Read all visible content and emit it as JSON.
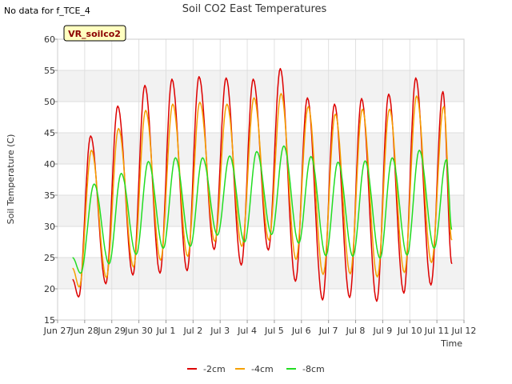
{
  "header": {
    "no_data_text": "No data for f_TCE_4"
  },
  "station_label": "VR_soilco2",
  "chart_data": {
    "type": "line",
    "title": "Soil CO2 East Temperatures",
    "xlabel": "Time",
    "ylabel": "Soil Temperature (C)",
    "x_ticks": [
      {
        "day": 0,
        "label": "Jun 27"
      },
      {
        "day": 1,
        "label": "Jun 28"
      },
      {
        "day": 2,
        "label": "Jun 29"
      },
      {
        "day": 3,
        "label": "Jun 30"
      },
      {
        "day": 4,
        "label": "Jul 1"
      },
      {
        "day": 5,
        "label": "Jul 2"
      },
      {
        "day": 6,
        "label": "Jul 3"
      },
      {
        "day": 7,
        "label": "Jul 4"
      },
      {
        "day": 8,
        "label": "Jul 5"
      },
      {
        "day": 9,
        "label": "Jul 6"
      },
      {
        "day": 10,
        "label": "Jul 7"
      },
      {
        "day": 11,
        "label": "Jul 8"
      },
      {
        "day": 12,
        "label": "Jul 9"
      },
      {
        "day": 13,
        "label": "Jul 10"
      },
      {
        "day": 14,
        "label": "Jul 11"
      },
      {
        "day": 15,
        "label": "Jul 12"
      }
    ],
    "xlim": [
      0,
      15
    ],
    "ylim": [
      15,
      60
    ],
    "y_ticks": [
      15,
      20,
      25,
      30,
      35,
      40,
      45,
      50,
      55,
      60
    ],
    "grid": "alternating horizontal bands",
    "legend_position": "bottom-center",
    "series": [
      {
        "name": "-2cm",
        "color": "#dd0000",
        "points": [
          [
            0.55,
            21.5
          ],
          [
            0.78,
            18.7
          ],
          [
            1.22,
            44.5
          ],
          [
            1.78,
            20.8
          ],
          [
            2.22,
            49.3
          ],
          [
            2.78,
            22.2
          ],
          [
            3.22,
            52.6
          ],
          [
            3.78,
            22.5
          ],
          [
            4.22,
            53.6
          ],
          [
            4.78,
            22.9
          ],
          [
            5.22,
            54.0
          ],
          [
            5.78,
            26.3
          ],
          [
            6.22,
            53.8
          ],
          [
            6.78,
            23.8
          ],
          [
            7.22,
            53.6
          ],
          [
            7.78,
            26.2
          ],
          [
            8.22,
            55.3
          ],
          [
            8.78,
            21.2
          ],
          [
            9.22,
            50.6
          ],
          [
            9.78,
            18.2
          ],
          [
            10.22,
            49.6
          ],
          [
            10.78,
            18.6
          ],
          [
            11.22,
            50.5
          ],
          [
            11.78,
            18.0
          ],
          [
            12.22,
            51.2
          ],
          [
            12.78,
            19.3
          ],
          [
            13.22,
            53.8
          ],
          [
            13.78,
            20.6
          ],
          [
            14.22,
            51.6
          ],
          [
            14.55,
            24.0
          ]
        ]
      },
      {
        "name": "-4cm",
        "color": "#f5a000",
        "points": [
          [
            0.55,
            23.3
          ],
          [
            0.8,
            20.3
          ],
          [
            1.25,
            42.2
          ],
          [
            1.8,
            21.8
          ],
          [
            2.25,
            45.7
          ],
          [
            2.8,
            23.5
          ],
          [
            3.25,
            48.6
          ],
          [
            3.8,
            24.6
          ],
          [
            4.25,
            49.6
          ],
          [
            4.8,
            25.2
          ],
          [
            5.25,
            49.9
          ],
          [
            5.8,
            27.6
          ],
          [
            6.25,
            49.6
          ],
          [
            6.8,
            26.8
          ],
          [
            7.25,
            50.6
          ],
          [
            7.8,
            27.8
          ],
          [
            8.25,
            51.3
          ],
          [
            8.8,
            24.7
          ],
          [
            9.25,
            49.2
          ],
          [
            9.8,
            22.3
          ],
          [
            10.25,
            48.0
          ],
          [
            10.8,
            22.4
          ],
          [
            11.25,
            48.8
          ],
          [
            11.8,
            21.9
          ],
          [
            12.25,
            48.8
          ],
          [
            12.8,
            22.6
          ],
          [
            13.25,
            50.9
          ],
          [
            13.8,
            24.2
          ],
          [
            14.25,
            49.2
          ],
          [
            14.55,
            27.8
          ]
        ]
      },
      {
        "name": "-8cm",
        "color": "#22dd22",
        "points": [
          [
            0.55,
            25.0
          ],
          [
            0.85,
            22.5
          ],
          [
            1.35,
            36.8
          ],
          [
            1.9,
            24.0
          ],
          [
            2.35,
            38.5
          ],
          [
            2.9,
            25.5
          ],
          [
            3.35,
            40.4
          ],
          [
            3.9,
            26.5
          ],
          [
            4.35,
            41.0
          ],
          [
            4.9,
            26.8
          ],
          [
            5.35,
            41.0
          ],
          [
            5.9,
            28.6
          ],
          [
            6.35,
            41.3
          ],
          [
            6.9,
            27.5
          ],
          [
            7.35,
            42.0
          ],
          [
            7.9,
            28.7
          ],
          [
            8.35,
            42.9
          ],
          [
            8.9,
            27.3
          ],
          [
            9.35,
            41.2
          ],
          [
            9.9,
            25.3
          ],
          [
            10.35,
            40.3
          ],
          [
            10.9,
            25.2
          ],
          [
            11.35,
            40.5
          ],
          [
            11.9,
            24.9
          ],
          [
            12.35,
            41.0
          ],
          [
            12.9,
            25.4
          ],
          [
            13.35,
            42.2
          ],
          [
            13.9,
            26.5
          ],
          [
            14.35,
            40.7
          ],
          [
            14.55,
            29.5
          ]
        ]
      }
    ]
  }
}
